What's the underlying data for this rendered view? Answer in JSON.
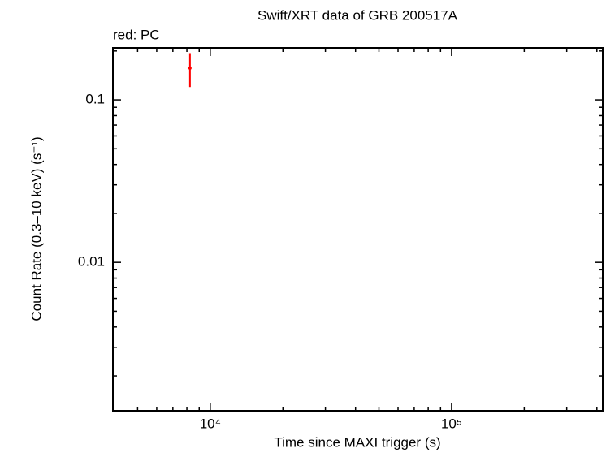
{
  "chart_data": {
    "type": "scatter",
    "title": "Swift/XRT data of GRB 200517A",
    "subtitle": "red: PC",
    "x_label": "Time since MAXI trigger (s)",
    "y_label": "Count Rate (0.3–10 keV) (s⁻¹)",
    "log_x": true,
    "log_y": true,
    "xlim": [
      3950,
      423000
    ],
    "ylim": [
      0.00122,
      0.209
    ],
    "xticks": [
      {
        "value": 10000,
        "label": "10⁴"
      },
      {
        "value": 100000,
        "label": "10⁵"
      }
    ],
    "yticks": [
      0.1,
      0.01
    ],
    "x_minor_ticks": [
      5000,
      6000,
      7000,
      8000,
      9000,
      20000,
      30000,
      40000,
      50000,
      60000,
      70000,
      80000,
      90000,
      200000,
      300000,
      400000
    ],
    "y_minor_ticks": [
      0.002,
      0.003,
      0.004,
      0.005,
      0.006,
      0.007,
      0.008,
      0.009,
      0.02,
      0.03,
      0.04,
      0.05,
      0.06,
      0.07,
      0.08,
      0.09,
      0.2
    ],
    "series": [
      {
        "name": "PC",
        "color": "#ff0000",
        "x": [
          8240
        ],
        "values": [
          0.157
        ],
        "y_err": [
          0.037
        ]
      }
    ]
  }
}
